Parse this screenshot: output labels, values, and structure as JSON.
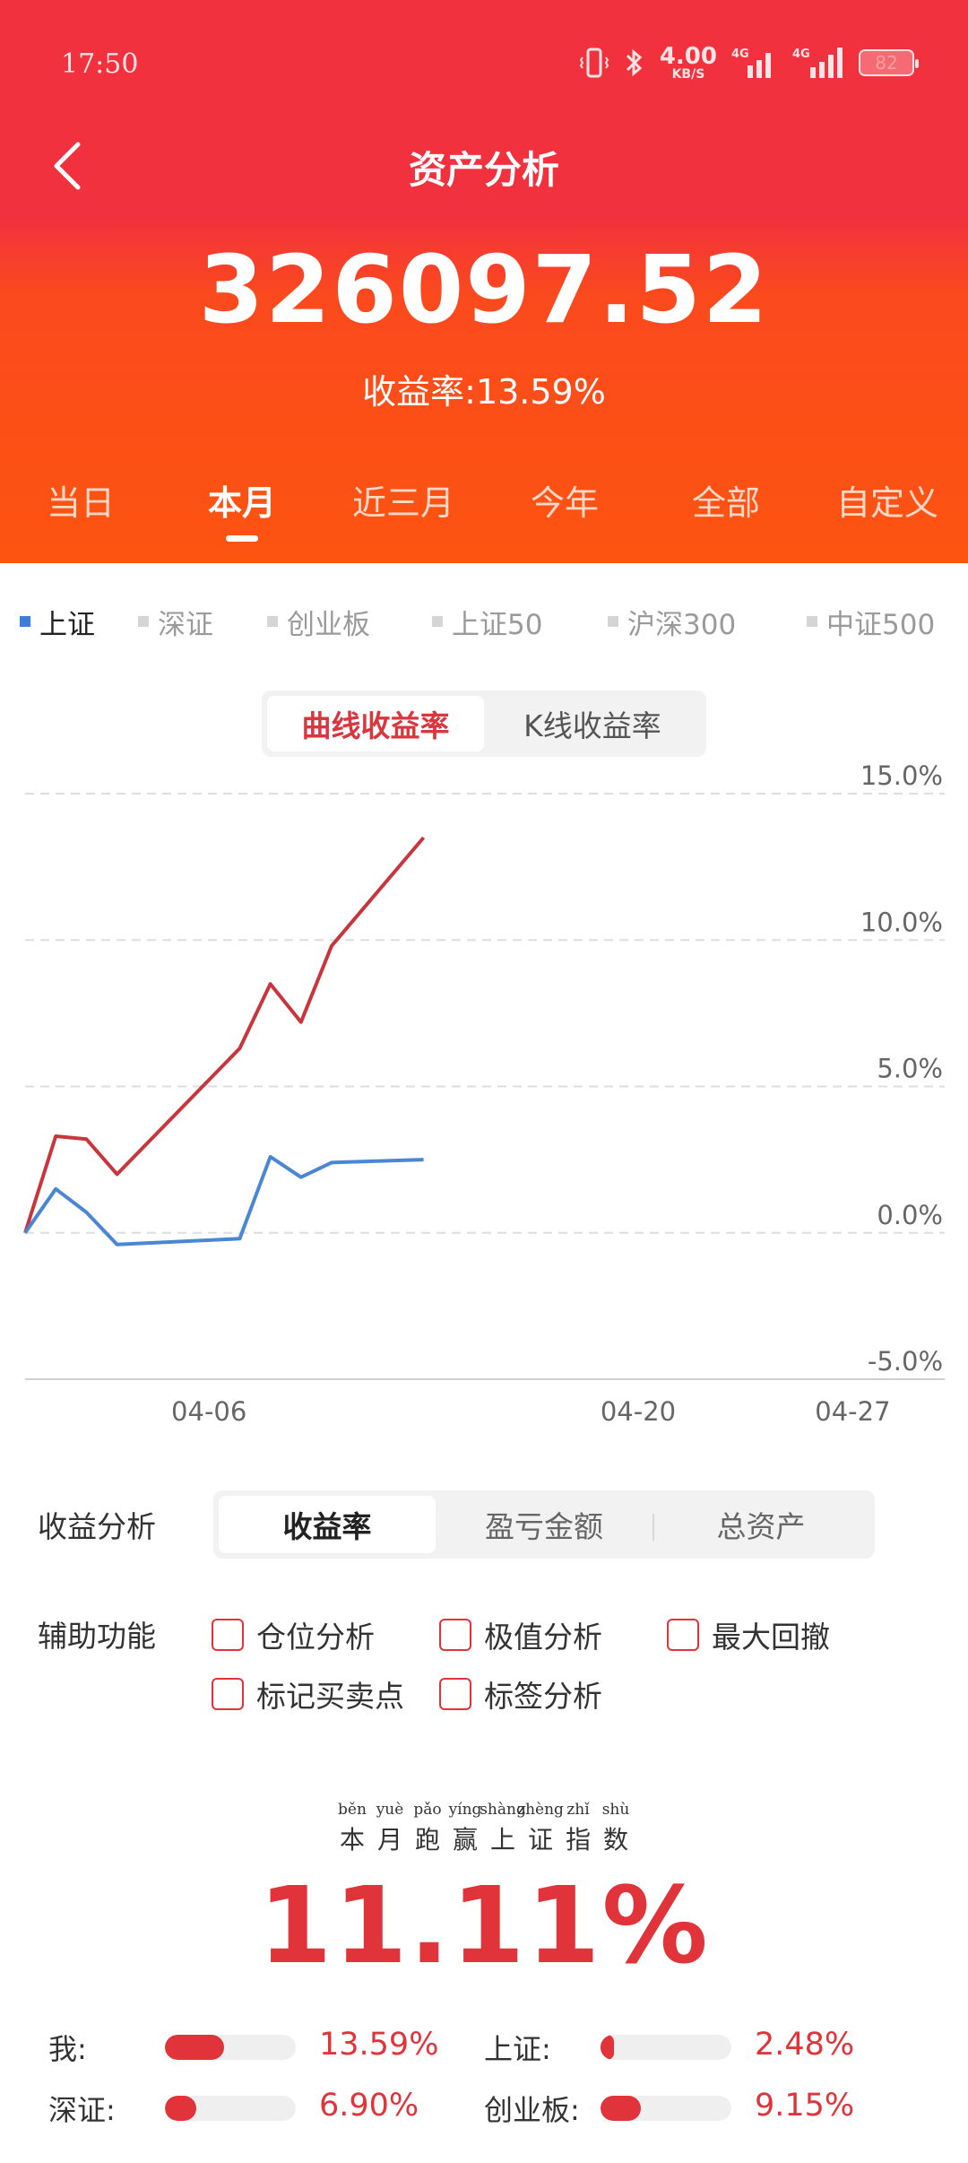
{
  "status": {
    "time": "17:50",
    "speed_value": "4.00",
    "speed_unit": "KB/S",
    "net_label_1": "4G",
    "net_label_2": "4G",
    "battery": "82"
  },
  "nav": {
    "title": "资产分析",
    "back_icon": "chevron-left-icon"
  },
  "summary": {
    "total": "326097.52",
    "yield": "收益率:13.59%"
  },
  "period_tabs": [
    {
      "label": "当日",
      "active": false
    },
    {
      "label": "本月",
      "active": true
    },
    {
      "label": "近三月",
      "active": false
    },
    {
      "label": "今年",
      "active": false
    },
    {
      "label": "全部",
      "active": false
    },
    {
      "label": "自定义",
      "active": false
    }
  ],
  "indices": [
    {
      "label": "上证",
      "active": true
    },
    {
      "label": "深证",
      "active": false
    },
    {
      "label": "创业板",
      "active": false
    },
    {
      "label": "上证50",
      "active": false
    },
    {
      "label": "沪深300",
      "active": false
    },
    {
      "label": "中证500",
      "active": false
    }
  ],
  "chart_toggle": {
    "curve": "曲线收益率",
    "kline": "K线收益率"
  },
  "chart_data": {
    "type": "line",
    "y_ticks": [
      "15.0%",
      "10.0%",
      "5.0%",
      "0.0%",
      "-5.0%"
    ],
    "ylim": [
      -5,
      15
    ],
    "x_ticks": [
      "04-06",
      "04-20",
      "04-27"
    ],
    "x_tick_days": [
      6,
      20,
      27
    ],
    "xlim": [
      0,
      30
    ],
    "grid": true,
    "series": [
      {
        "color": "#c9353d",
        "x": [
          0,
          1,
          2,
          3,
          7,
          8,
          9,
          10,
          13
        ],
        "y": [
          0.0,
          3.3,
          3.2,
          2.0,
          6.3,
          8.5,
          7.2,
          9.8,
          13.5
        ]
      },
      {
        "color": "#4a86d4",
        "x": [
          0,
          1,
          2,
          3,
          7,
          8,
          9,
          10,
          13
        ],
        "y": [
          0.0,
          1.5,
          0.7,
          -0.4,
          -0.2,
          2.6,
          1.9,
          2.4,
          2.5
        ]
      }
    ]
  },
  "analysis": {
    "label": "收益分析",
    "options": [
      {
        "label": "收益率",
        "active": true
      },
      {
        "label": "盈亏金额",
        "active": false
      },
      {
        "label": "总资产",
        "active": false
      }
    ]
  },
  "aux": {
    "label": "辅助功能",
    "items": [
      "仓位分析",
      "极值分析",
      "最大回撤",
      "标记买卖点",
      "标签分析"
    ]
  },
  "outperform": {
    "pinyin": [
      {
        "p": "běn",
        "h": "本"
      },
      {
        "p": "yuè",
        "h": "月"
      },
      {
        "p": "pǎo",
        "h": "跑"
      },
      {
        "p": "yíng",
        "h": "赢"
      },
      {
        "p": "shàng",
        "h": "上"
      },
      {
        "p": "zhèng",
        "h": "证"
      },
      {
        "p": "zhǐ",
        "h": "指"
      },
      {
        "p": "shù",
        "h": "数"
      }
    ],
    "value": "11.11%"
  },
  "comparison": [
    {
      "label": "我:",
      "value": "13.59%",
      "fill": 0.45
    },
    {
      "label": "上证:",
      "value": "2.48%",
      "fill": 0.1
    },
    {
      "label": "深证:",
      "value": "6.90%",
      "fill": 0.24
    },
    {
      "label": "创业板:",
      "value": "9.15%",
      "fill": 0.31
    }
  ]
}
